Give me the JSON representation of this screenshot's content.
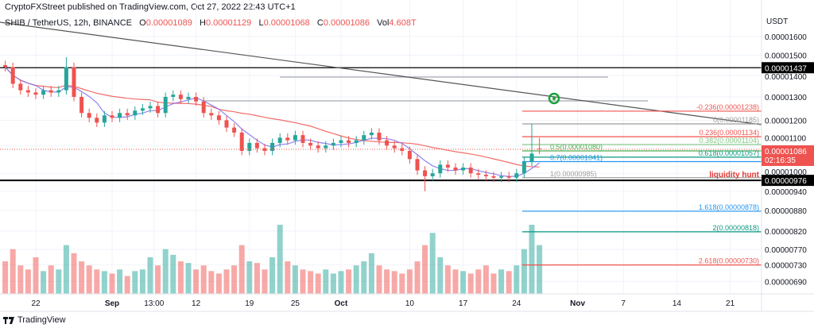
{
  "header": {
    "published": "CryptoFXStreet published on TradingView.com, Oct 27, 2022 22:43 UTC+1"
  },
  "legend": {
    "symbol": "SHIB / TetherUS, 12h, BINANCE",
    "o_label": "O",
    "o": "0.00001089",
    "h_label": "H",
    "h": "0.00001129",
    "l_label": "L",
    "l": "0.00001068",
    "c_label": "C",
    "c": "0.00001086",
    "vol_label": "Vol",
    "vol": "4.608T"
  },
  "footer": {
    "brand": "TradingView"
  },
  "colors": {
    "up": "#26a69a",
    "down": "#ef5350",
    "ma_fast": "#7b6ff0",
    "ma_slow": "#ef5350"
  },
  "chart_data": {
    "type": "candlestick",
    "price_unit": "1e-8 USDT",
    "scale": "log",
    "y_axis_title": "USDT",
    "y_ticks": [
      "0.00001600",
      "0.00001500",
      "0.00001400",
      "0.00001300",
      "0.00001200",
      "0.00001100",
      "0.00001000",
      "0.00000940",
      "0.00000880",
      "0.00000820",
      "0.00000770",
      "0.00000730",
      "0.00000690"
    ],
    "y_tick_values": [
      1600,
      1500,
      1400,
      1300,
      1200,
      1100,
      1000,
      940,
      880,
      820,
      770,
      730,
      690
    ],
    "x_ticks": [
      {
        "label": "22",
        "day": 4
      },
      {
        "label": "Sep",
        "day": 14,
        "bold": true
      },
      {
        "label": "13:00",
        "day": 19.5
      },
      {
        "label": "12",
        "day": 25
      },
      {
        "label": "19",
        "day": 32
      },
      {
        "label": "25",
        "day": 38
      },
      {
        "label": "Oct",
        "day": 44,
        "bold": true
      },
      {
        "label": "10",
        "day": 53
      },
      {
        "label": "17",
        "day": 60
      },
      {
        "label": "24",
        "day": 67
      },
      {
        "label": "Nov",
        "day": 75,
        "bold": true
      },
      {
        "label": "7",
        "day": 81
      },
      {
        "label": "14",
        "day": 88
      },
      {
        "label": "21",
        "day": 95
      }
    ],
    "closes": [
      1440,
      1360,
      1330,
      1320,
      1310,
      1330,
      1320,
      1330,
      1440,
      1300,
      1230,
      1210,
      1190,
      1220,
      1210,
      1230,
      1220,
      1240,
      1250,
      1260,
      1230,
      1300,
      1310,
      1290,
      1300,
      1280,
      1230,
      1220,
      1200,
      1170,
      1150,
      1080,
      1110,
      1090,
      1080,
      1110,
      1130,
      1120,
      1140,
      1110,
      1100,
      1090,
      1100,
      1110,
      1120,
      1110,
      1120,
      1140,
      1150,
      1120,
      1100,
      1090,
      1080,
      1050,
      1010,
      990,
      1000,
      1030,
      1020,
      1010,
      1020,
      1000,
      995,
      990,
      985,
      990,
      985,
      1000,
      1040,
      1070,
      1086
    ],
    "first_open": 1450,
    "last_candle": {
      "open": 1089,
      "high": 1129,
      "low": 1068,
      "close": 1086
    },
    "volumes": [
      40,
      55,
      35,
      30,
      45,
      28,
      35,
      30,
      60,
      50,
      40,
      35,
      30,
      28,
      25,
      30,
      22,
      28,
      30,
      45,
      35,
      55,
      48,
      40,
      38,
      30,
      35,
      28,
      25,
      30,
      35,
      60,
      40,
      38,
      30,
      45,
      85,
      40,
      35,
      30,
      28,
      25,
      30,
      25,
      28,
      30,
      35,
      40,
      50,
      35,
      30,
      28,
      25,
      30,
      40,
      60,
      75,
      45,
      35,
      30,
      28,
      25,
      30,
      35,
      25,
      30,
      28,
      35,
      55,
      85,
      60
    ],
    "hlines": [
      {
        "price": 1437,
        "label": "0.00001437",
        "color": "#000000"
      },
      {
        "price": 976,
        "label": "0.00000976",
        "color": "#000000"
      }
    ],
    "current_price": {
      "label": "0.00001086",
      "countdown": "02:16:35",
      "price": 1086
    },
    "fib_levels": [
      {
        "label": "-0.236(0.00001238)",
        "price": 1238,
        "color": "#ef5350"
      },
      {
        "label": "0(0.00001185)",
        "price": 1185,
        "color": "#9e9e9e"
      },
      {
        "label": "0.236(0.00001134)",
        "price": 1134,
        "color": "#ef5350"
      },
      {
        "label": "0.382(0.00001104)",
        "price": 1104,
        "color": "#81c784"
      },
      {
        "label": "0.5(0.00001080)",
        "price": 1080,
        "color": "#4caf50"
      },
      {
        "label": "0.618(0.00001057)",
        "price": 1057,
        "color": "#089981"
      },
      {
        "label": "0.7(0.00001041)",
        "price": 1041,
        "color": "#2196f3"
      },
      {
        "label": "1(0.00000985)",
        "price": 985,
        "color": "#9e9e9e"
      },
      {
        "label": "1.618(0.00000878)",
        "price": 878,
        "color": "#2196f3"
      },
      {
        "label": "2(0.00000818)",
        "price": 818,
        "color": "#089981"
      },
      {
        "label": "2.618(0.00000730)",
        "price": 730,
        "color": "#ef5350"
      }
    ],
    "annotation": "liquidity hunt"
  }
}
